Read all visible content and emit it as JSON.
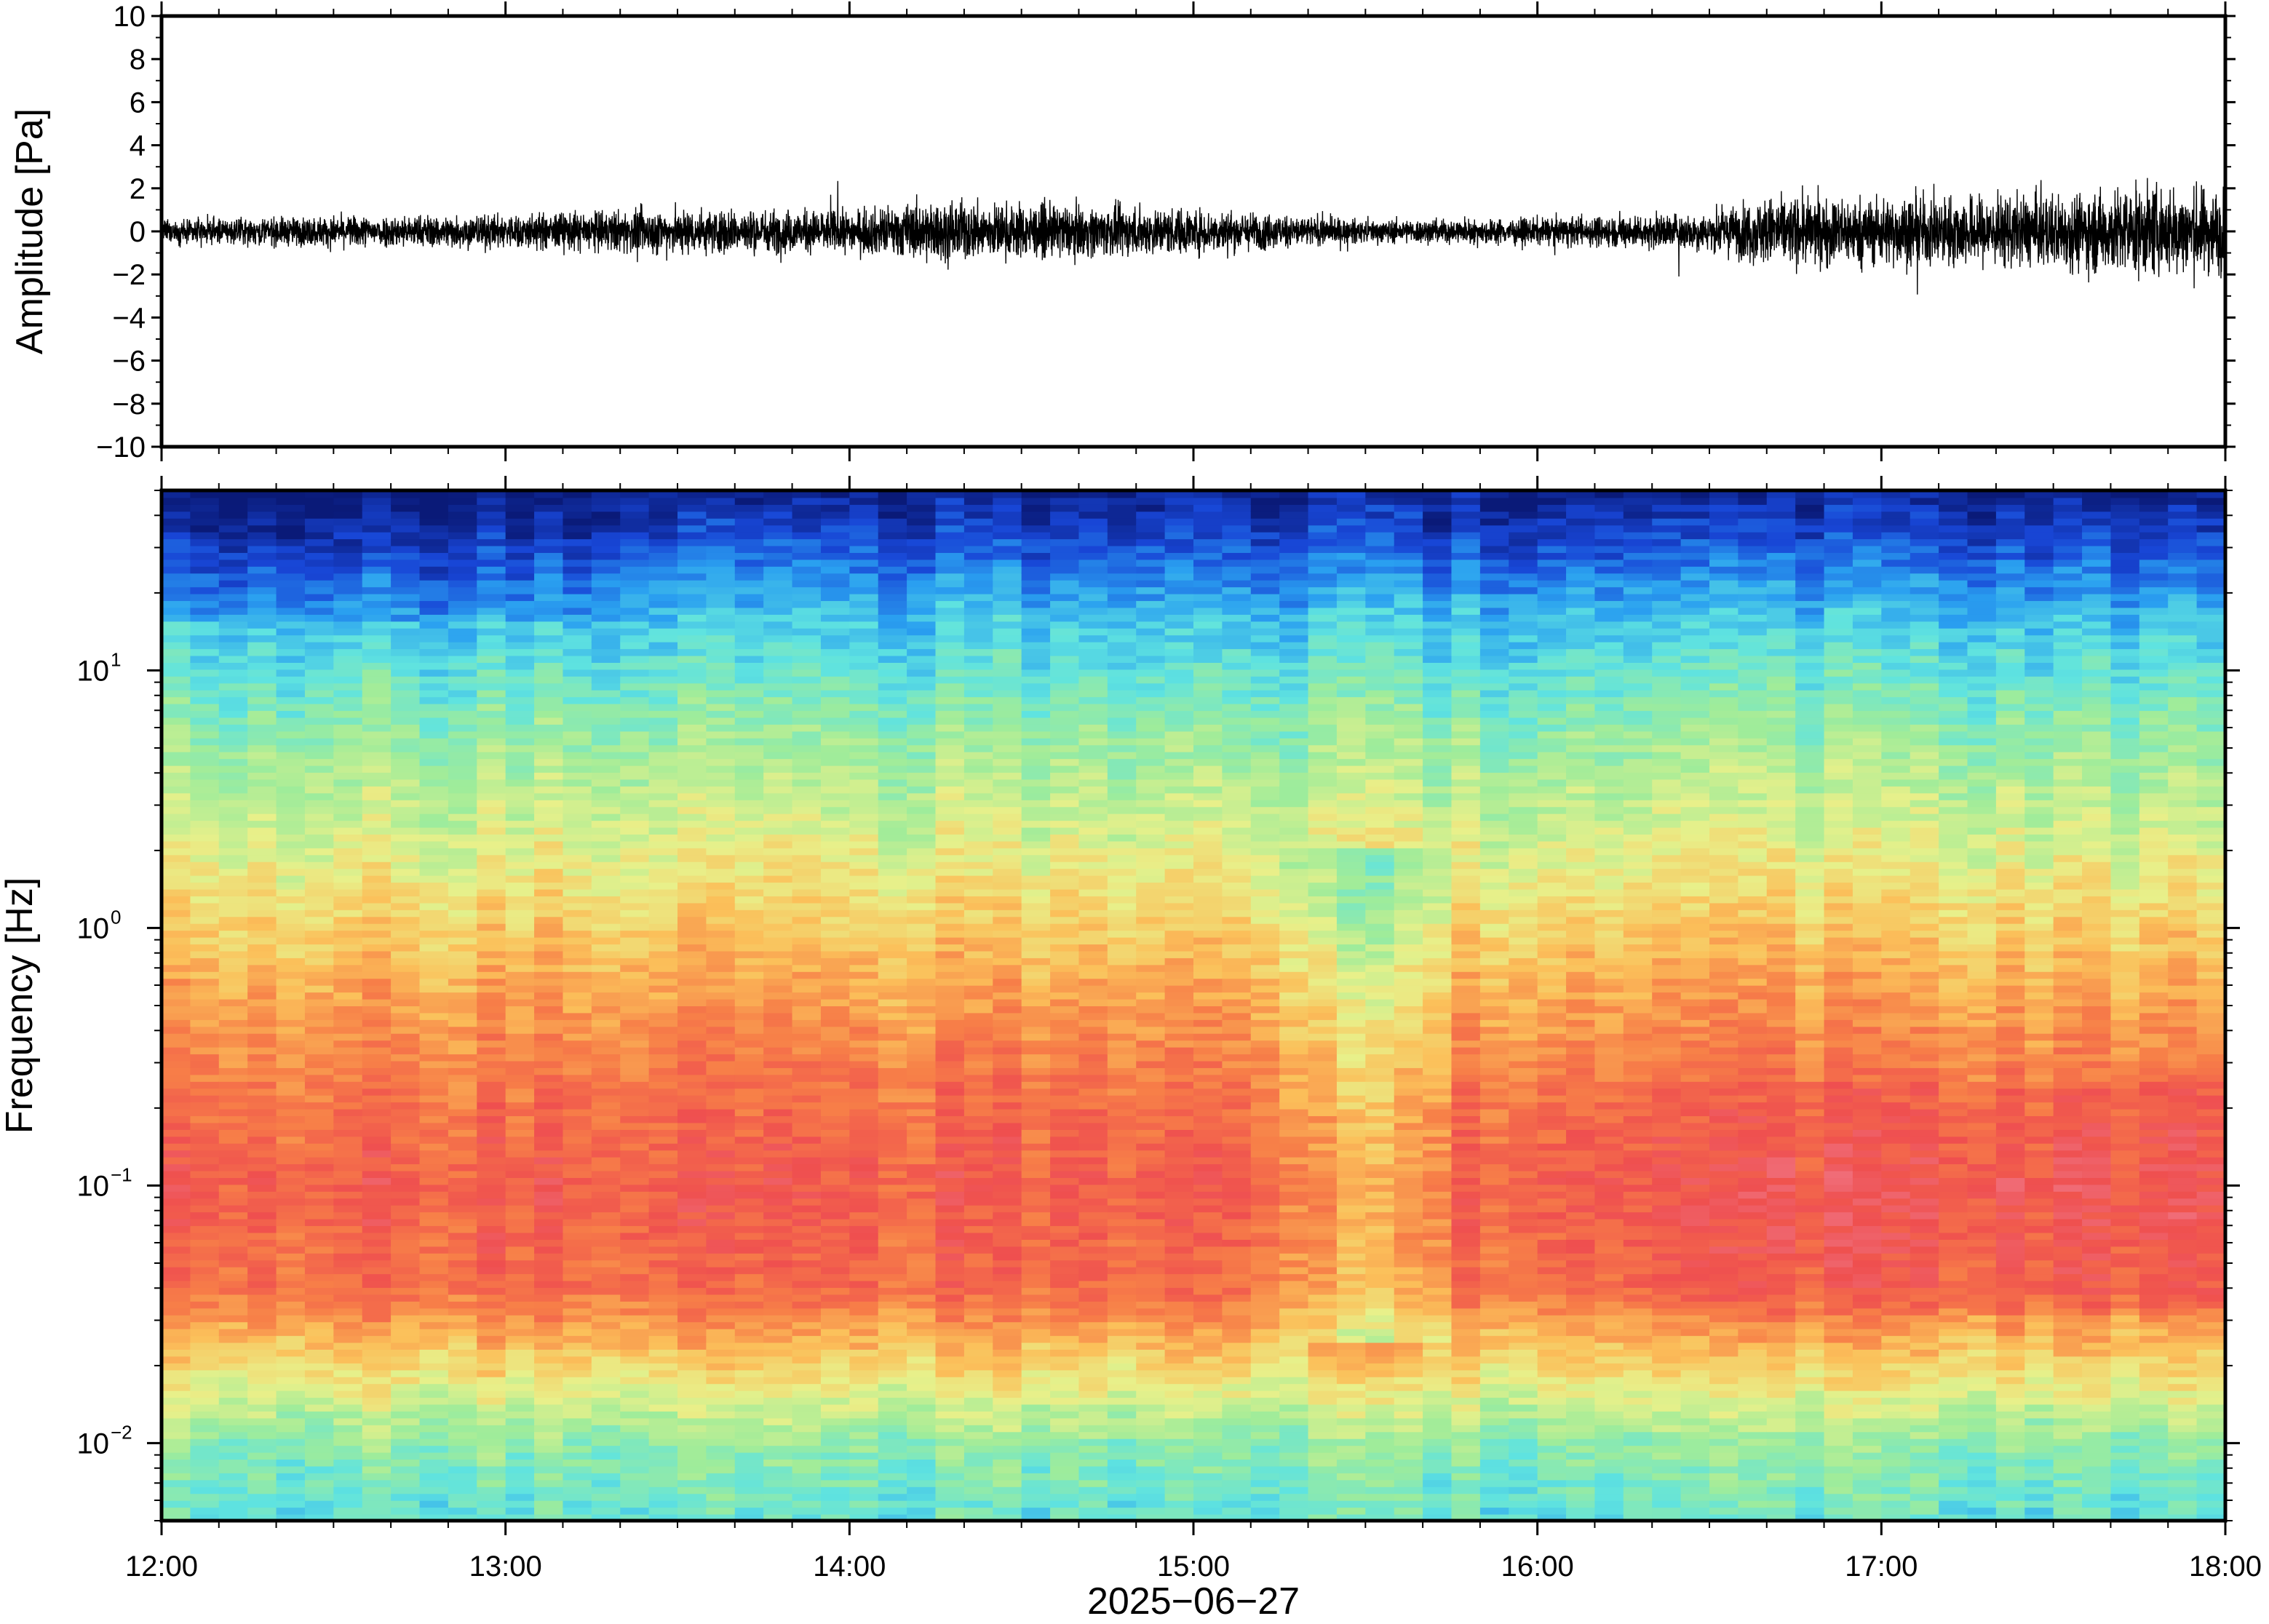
{
  "chart_data": [
    {
      "type": "line",
      "name": "waveform",
      "ylabel": "Amplitude [Pa]",
      "ylim": [
        -10,
        10
      ],
      "yticks": [
        -10,
        -8,
        -6,
        -4,
        -2,
        0,
        2,
        4,
        6,
        8,
        10
      ],
      "ytick_labels": [
        "−10",
        "−8",
        "−6",
        "−4",
        "−2",
        "0",
        "2",
        "4",
        "6",
        "8",
        "10"
      ],
      "xlim": [
        "12:00",
        "18:00"
      ],
      "trace_color": "#000000",
      "envelope": {
        "time": [
          "12:00",
          "12:30",
          "13:00",
          "13:30",
          "14:00",
          "14:15",
          "14:30",
          "15:00",
          "15:30",
          "16:00",
          "16:30",
          "16:40",
          "17:00",
          "17:30",
          "17:45",
          "18:00"
        ],
        "half_range_pa": [
          0.6,
          0.8,
          0.9,
          1.2,
          1.1,
          1.6,
          1.4,
          1.2,
          0.6,
          0.7,
          1.0,
          1.8,
          1.8,
          1.9,
          2.4,
          2.2
        ]
      }
    },
    {
      "type": "heatmap",
      "name": "spectrogram",
      "ylabel": "Frequency [Hz]",
      "yscale": "log",
      "ylim": [
        0.005,
        50
      ],
      "yticks": [
        0.01,
        0.1,
        1,
        10
      ],
      "ytick_labels": [
        {
          "base": "10",
          "exp": "−2"
        },
        {
          "base": "10",
          "exp": "−1"
        },
        {
          "base": "10",
          "exp": "0"
        },
        {
          "base": "10",
          "exp": "1"
        }
      ],
      "xlabel": "2025−06−27",
      "xlim": [
        "12:00",
        "18:00"
      ],
      "xticks": [
        "12:00",
        "13:00",
        "14:00",
        "15:00",
        "16:00",
        "17:00",
        "18:00"
      ],
      "colormap": [
        "#0a1a78",
        "#1846d6",
        "#2aa0f0",
        "#5fe3e0",
        "#9fec9a",
        "#e8f08a",
        "#fbc05a",
        "#f77f48",
        "#ef4f4f",
        "#f07a8a"
      ],
      "profile_log10hz": [
        -2.3,
        -2.0,
        -1.7,
        -1.4,
        -1.0,
        -0.6,
        -0.2,
        0.3,
        0.8,
        1.2,
        1.5,
        1.7
      ],
      "profile_level": [
        0.35,
        0.42,
        0.62,
        0.82,
        0.86,
        0.8,
        0.7,
        0.55,
        0.42,
        0.28,
        0.12,
        0.02
      ]
    }
  ]
}
